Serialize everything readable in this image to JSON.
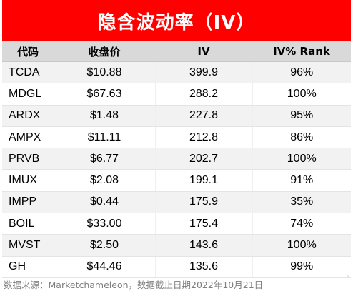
{
  "title": "隐含波动率（IV）",
  "table": {
    "headers": [
      "代码",
      "收盘价",
      "IV",
      "IV% Rank"
    ],
    "rows": [
      {
        "ticker": "TCDA",
        "close": "$10.88",
        "iv": "399.9",
        "rank": "96%"
      },
      {
        "ticker": "MDGL",
        "close": "$67.63",
        "iv": "288.2",
        "rank": "100%"
      },
      {
        "ticker": "ARDX",
        "close": "$1.48",
        "iv": "227.8",
        "rank": "95%"
      },
      {
        "ticker": "AMPX",
        "close": "$11.11",
        "iv": "212.8",
        "rank": "86%"
      },
      {
        "ticker": "PRVB",
        "close": "$6.77",
        "iv": "202.7",
        "rank": "100%"
      },
      {
        "ticker": "IMUX",
        "close": "$2.08",
        "iv": "199.1",
        "rank": "91%"
      },
      {
        "ticker": "IMPP",
        "close": "$0.44",
        "iv": "175.9",
        "rank": "35%"
      },
      {
        "ticker": "BOIL",
        "close": "$33.00",
        "iv": "175.4",
        "rank": "74%"
      },
      {
        "ticker": "MVST",
        "close": "$2.50",
        "iv": "143.6",
        "rank": "100%"
      },
      {
        "ticker": "GH",
        "close": "$44.46",
        "iv": "135.6",
        "rank": "99%"
      }
    ]
  },
  "footnote": "数据来源：Marketchameleon，数据截止日期2022年10月21日",
  "colors": {
    "title_background": "#ff0000",
    "title_text": "#ffffff",
    "header_background": "#d9d9d9",
    "row_band": "#f2f2f2",
    "footnote_text": "#7f7f7f"
  }
}
